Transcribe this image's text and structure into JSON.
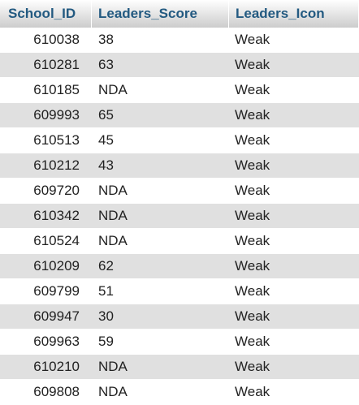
{
  "columns": [
    "School_ID",
    "Leaders_Score",
    "Leaders_Icon"
  ],
  "rows": [
    [
      "610038",
      "38",
      "Weak"
    ],
    [
      "610281",
      "63",
      "Weak"
    ],
    [
      "610185",
      "NDA",
      "Weak"
    ],
    [
      "609993",
      "65",
      "Weak"
    ],
    [
      "610513",
      "45",
      "Weak"
    ],
    [
      "610212",
      "43",
      "Weak"
    ],
    [
      "609720",
      "NDA",
      "Weak"
    ],
    [
      "610342",
      "NDA",
      "Weak"
    ],
    [
      "610524",
      "NDA",
      "Weak"
    ],
    [
      "610209",
      "62",
      "Weak"
    ],
    [
      "609799",
      "51",
      "Weak"
    ],
    [
      "609947",
      "30",
      "Weak"
    ],
    [
      "609963",
      "59",
      "Weak"
    ],
    [
      "610210",
      "NDA",
      "Weak"
    ],
    [
      "609808",
      "NDA",
      "Weak"
    ]
  ],
  "colors": {
    "header_text": "#235a81",
    "even_row": "#e0e0e0",
    "text": "#222222"
  }
}
